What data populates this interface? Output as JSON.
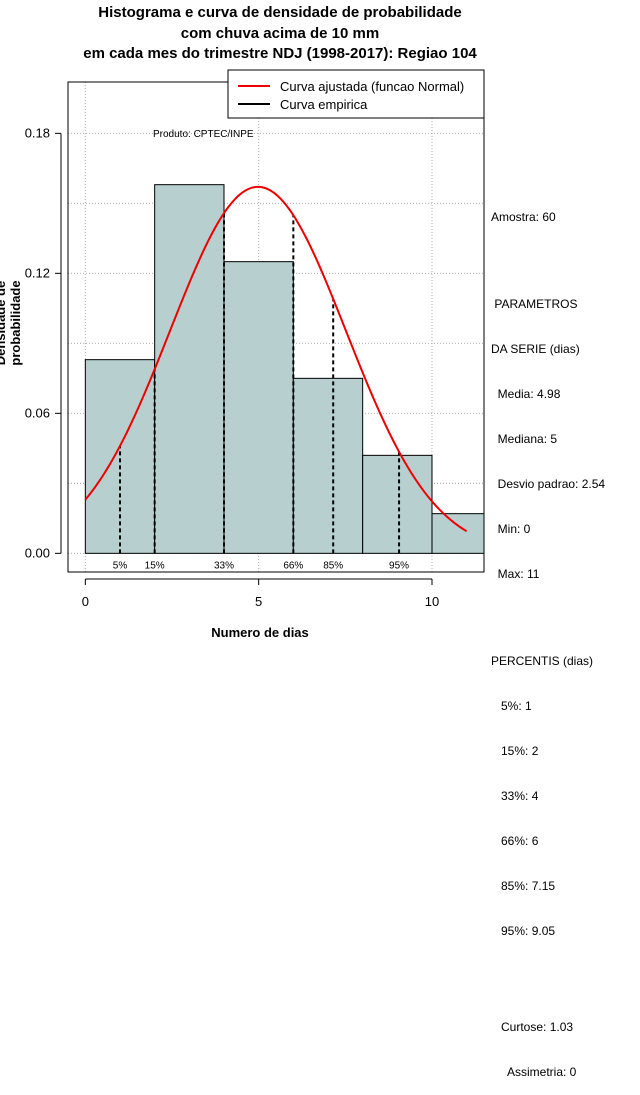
{
  "titles": [
    "Histograma e curva de densidade de probabilidade",
    "com chuva acima de 10 mm",
    "em cada mes do trimestre NDJ (1998-2017): Regiao 104"
  ],
  "product_label": "Produto: CPTEC/INPE",
  "legend": {
    "position": "top-right",
    "items": [
      {
        "label": "Curva ajustada (funcao Normal)",
        "color": "#ee0000"
      },
      {
        "label": "Curva empirica",
        "color": "#000000"
      }
    ]
  },
  "colors": {
    "bar_fill": "#b8cfcf",
    "normal_curve": "#ee0000",
    "grid": "#b0b0b0"
  },
  "stats": {
    "sample": "Amostra: 60",
    "params_title_1": " PARAMETROS",
    "params_title_2": "DA SERIE (dias)",
    "mean": "  Media: 4.98",
    "median": "  Mediana: 5",
    "sd": "  Desvio padrao: 2.54",
    "min": "  Min: 0",
    "max": "  Max: 11",
    "pct_title": "PERCENTIS (dias)",
    "p5": "   5%: 1",
    "p15": "   15%: 2",
    "p33": "   33%: 4",
    "p66": "   66%: 6",
    "p85": "   85%: 7.15",
    "p95": "   95%: 9.05",
    "kurtosis": "   Curtose: 1.03",
    "skewness": "     Assimetria: 0"
  },
  "chart_data": {
    "type": "bar",
    "title": "Histograma e curva de densidade de probabilidade com chuva acima de 10 mm em cada mes do trimestre NDJ (1998-2017): Regiao 104",
    "xlabel": "Numero de dias",
    "ylabel": "Densidade de probabilidade",
    "xlim": [
      -0.5,
      11.5
    ],
    "ylim": [
      -0.008,
      0.202
    ],
    "x_ticks": [
      0,
      5,
      10
    ],
    "y_ticks": [
      0.0,
      0.06,
      0.12,
      0.18
    ],
    "y_tick_labels": [
      "0.00",
      "0.06",
      "0.12",
      "0.18"
    ],
    "grid": true,
    "bins": [
      {
        "start": 0,
        "end": 2,
        "density": 0.083
      },
      {
        "start": 2,
        "end": 4,
        "density": 0.158
      },
      {
        "start": 4,
        "end": 6,
        "density": 0.125
      },
      {
        "start": 6,
        "end": 8,
        "density": 0.075
      },
      {
        "start": 8,
        "end": 10,
        "density": 0.042
      },
      {
        "start": 10,
        "end": 12,
        "density": 0.017
      }
    ],
    "normal_fit": {
      "mean": 4.98,
      "sd": 2.54,
      "x_from": 0,
      "x_to": 11
    },
    "percentile_lines": [
      {
        "label": "5%",
        "x": 1
      },
      {
        "label": "15%",
        "x": 2
      },
      {
        "label": "33%",
        "x": 4
      },
      {
        "label": "66%",
        "x": 6
      },
      {
        "label": "85%",
        "x": 7.15
      },
      {
        "label": "95%",
        "x": 9.05
      }
    ]
  }
}
